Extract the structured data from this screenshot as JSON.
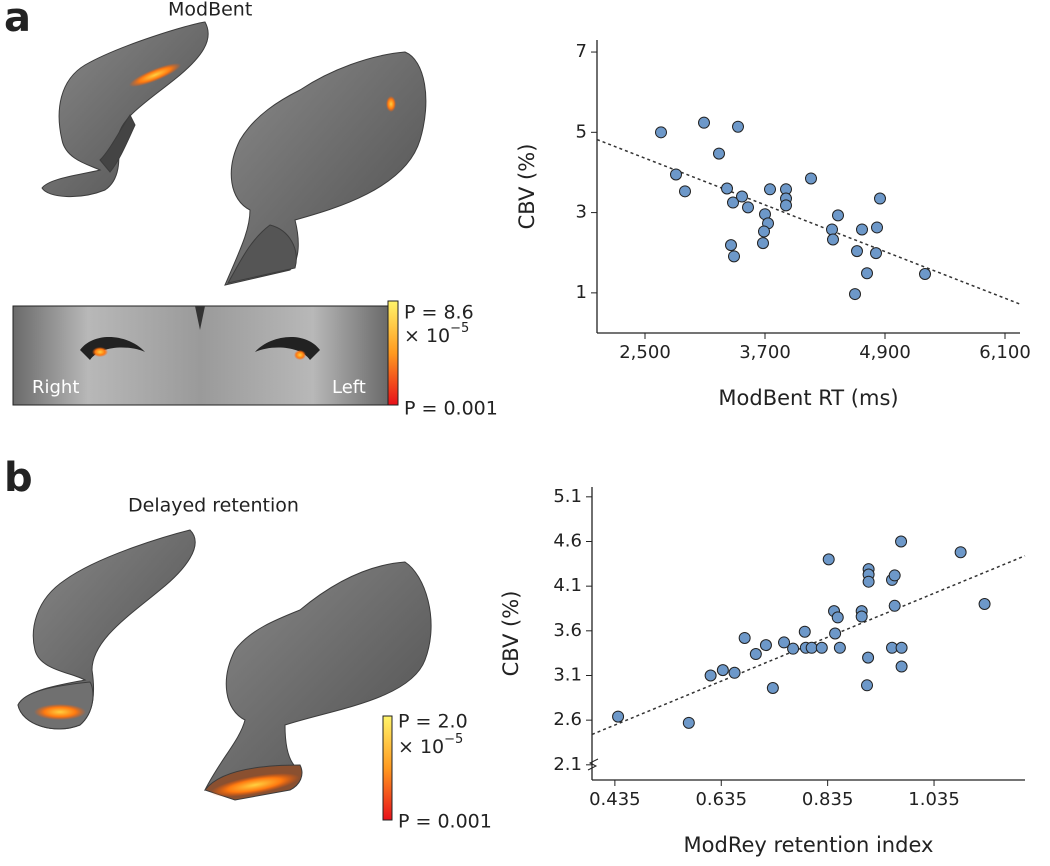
{
  "panels": {
    "a": {
      "label": "a",
      "title": "ModBent",
      "slice_right": "Right",
      "slice_left": "Left",
      "colorbar_top": "P = 8.6",
      "colorbar_times": "× 10",
      "colorbar_exp": "−5",
      "colorbar_bottom": "P = 0.001"
    },
    "b": {
      "label": "b",
      "title": "Delayed retention",
      "colorbar_top": "P = 2.0",
      "colorbar_times": "× 10",
      "colorbar_exp": "−5",
      "colorbar_bottom": "P = 0.001"
    }
  },
  "chart_data": [
    {
      "type": "scatter",
      "xlabel": "ModBent RT (ms)",
      "ylabel": "CBV (%)",
      "color": "#6d98c9",
      "xlim": [
        2020,
        6250
      ],
      "ylim": [
        0,
        7.3
      ],
      "xticks": [
        {
          "value": 2500,
          "label": "2,500"
        },
        {
          "value": 3700,
          "label": "3,700"
        },
        {
          "value": 4900,
          "label": "4,900"
        },
        {
          "value": 6100,
          "label": "6,100"
        }
      ],
      "yticks": [
        1,
        3,
        5,
        7
      ],
      "x": [
        2660,
        3090,
        3430,
        3240,
        2810,
        2900,
        3320,
        3380,
        3470,
        3530,
        3750,
        3910,
        3910,
        3910,
        4160,
        3700,
        3730,
        3690,
        3680,
        3360,
        3390,
        4430,
        4370,
        4380,
        4670,
        4850,
        4820,
        4620,
        4810,
        4720,
        5300,
        4600
      ],
      "y": [
        5.0,
        5.24,
        5.14,
        4.47,
        3.95,
        3.53,
        3.6,
        3.25,
        3.4,
        3.13,
        3.58,
        3.58,
        3.35,
        3.18,
        3.85,
        2.96,
        2.73,
        2.53,
        2.24,
        2.19,
        1.91,
        2.93,
        2.58,
        2.33,
        2.58,
        3.35,
        2.63,
        2.04,
        1.99,
        1.49,
        1.47,
        0.97
      ],
      "trendline": {
        "x": [
          2020,
          6250
        ],
        "y": [
          4.82,
          0.72
        ]
      }
    },
    {
      "type": "scatter",
      "xlabel": "ModRey retention index",
      "ylabel": "CBV (%)",
      "color": "#6d98c9",
      "xlim": [
        0.392,
        1.206
      ],
      "ylim": [
        1.93,
        5.21
      ],
      "xticks": [
        0.435,
        0.635,
        0.835,
        1.035
      ],
      "yticks": [
        2.1,
        2.6,
        3.1,
        3.6,
        4.1,
        4.6,
        5.1
      ],
      "x": [
        0.441,
        0.574,
        0.615,
        0.638,
        0.66,
        0.679,
        0.7,
        0.719,
        0.732,
        0.753,
        0.77,
        0.792,
        0.794,
        0.805,
        0.824,
        0.837,
        0.847,
        0.849,
        0.854,
        0.858,
        0.899,
        0.899,
        0.912,
        0.912,
        0.912,
        0.911,
        0.909,
        0.956,
        0.961,
        0.961,
        0.973,
        0.956,
        0.974,
        0.974,
        1.085,
        1.13
      ],
      "y": [
        2.64,
        2.57,
        3.1,
        3.16,
        3.13,
        3.52,
        3.34,
        3.44,
        2.96,
        3.47,
        3.4,
        3.59,
        3.41,
        3.41,
        3.41,
        4.4,
        3.82,
        3.57,
        3.75,
        3.41,
        3.82,
        3.76,
        4.29,
        4.23,
        4.15,
        3.3,
        2.99,
        4.17,
        4.22,
        3.88,
        4.6,
        3.41,
        3.41,
        3.2,
        4.48,
        3.9
      ],
      "trendline": {
        "x": [
          0.392,
          1.206
        ],
        "y": [
          2.44,
          4.44
        ]
      }
    }
  ]
}
